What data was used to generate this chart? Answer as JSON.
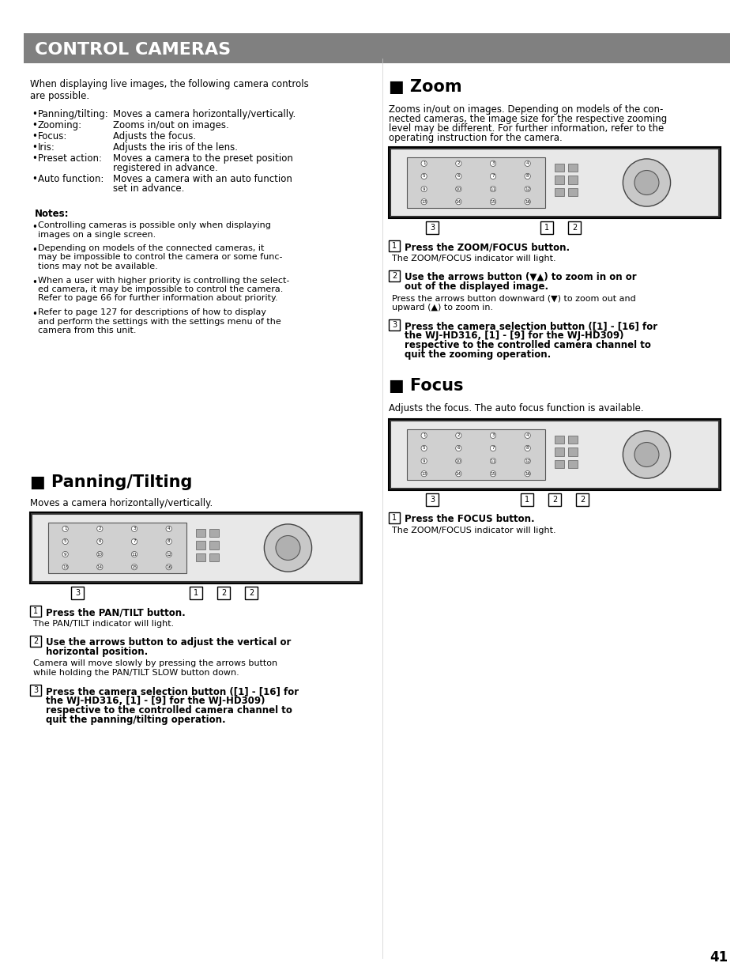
{
  "bg_color": "#ffffff",
  "page_number": "41",
  "header_bg": "#808080",
  "header_text": "CONTROL CAMERAS",
  "header_text_color": "#ffffff",
  "header_fontsize": 16,
  "body_fontsize": 8.5,
  "small_fontsize": 7.5,
  "section_title_fontsize": 15,
  "step_bold_fontsize": 8.5,
  "intro_text": "When displaying live images, the following camera controls\nare possible.",
  "bullet_items": [
    [
      "Panning/tilting:",
      "Moves a camera horizontally/vertically."
    ],
    [
      "Zooming:",
      "Zooms in/out on images."
    ],
    [
      "Focus:",
      "Adjusts the focus."
    ],
    [
      "Iris:",
      "Adjusts the iris of the lens."
    ],
    [
      "Preset action:",
      "Moves a camera to the preset position\nregistered in advance."
    ],
    [
      "Auto function:",
      "Moves a camera with an auto function\nset in advance."
    ]
  ],
  "notes_title": "Notes:",
  "note_items": [
    "Controlling cameras is possible only when displaying\nimages on a single screen.",
    "Depending on models of the connected cameras, it\nmay be impossible to control the camera or some func-\ntions may not be available.",
    "When a user with higher priority is controlling the select-\ned camera, it may be impossible to control the camera.\nRefer to page 66 for further information about priority.",
    "Refer to page 127 for descriptions of how to display\nand perform the settings with the settings menu of the\ncamera from this unit."
  ],
  "pan_section_title": "■ Panning/Tilting",
  "pan_subtitle": "Moves a camera horizontally/vertically.",
  "pan_steps": [
    [
      "1",
      "Press the PAN/TILT button.",
      "The PAN/TILT indicator will light."
    ],
    [
      "2",
      "Use the arrows button to adjust the vertical or\nhorizontal position.",
      "Camera will move slowly by pressing the arrows button\nwhile holding the PAN/TILT SLOW button down."
    ],
    [
      "3",
      "Press the camera selection button ([1] - [16] for\nthe WJ-HD316, [1] - [9] for the WJ-HD309)\nrespective to the controlled camera channel to\nquit the panning/tilting operation.",
      ""
    ]
  ],
  "zoom_section_title": "■ Zoom",
  "zoom_intro": "Zooms in/out on images. Depending on models of the con-\nnected cameras, the image size for the respective zooming\nlevel may be different. For further information, refer to the\noperating instruction for the camera.",
  "zoom_steps": [
    [
      "1",
      "Press the ZOOM/FOCUS button.",
      "The ZOOM/FOCUS indicator will light."
    ],
    [
      "2",
      "Use the arrows button (▼▲) to zoom in on or\nout of the displayed image.",
      "Press the arrows button downward (▼) to zoom out and\nupward (▲) to zoom in."
    ],
    [
      "3",
      "Press the camera selection button ([1] - [16] for\nthe WJ-HD316, [1] - [9] for the WJ-HD309)\nrespective to the controlled camera channel to\nquit the zooming operation.",
      ""
    ]
  ],
  "focus_section_title": "■ Focus",
  "focus_intro": "Adjusts the focus. The auto focus function is available.",
  "focus_steps": [
    [
      "1",
      "Press the FOCUS button.",
      "The ZOOM/FOCUS indicator will light."
    ]
  ]
}
